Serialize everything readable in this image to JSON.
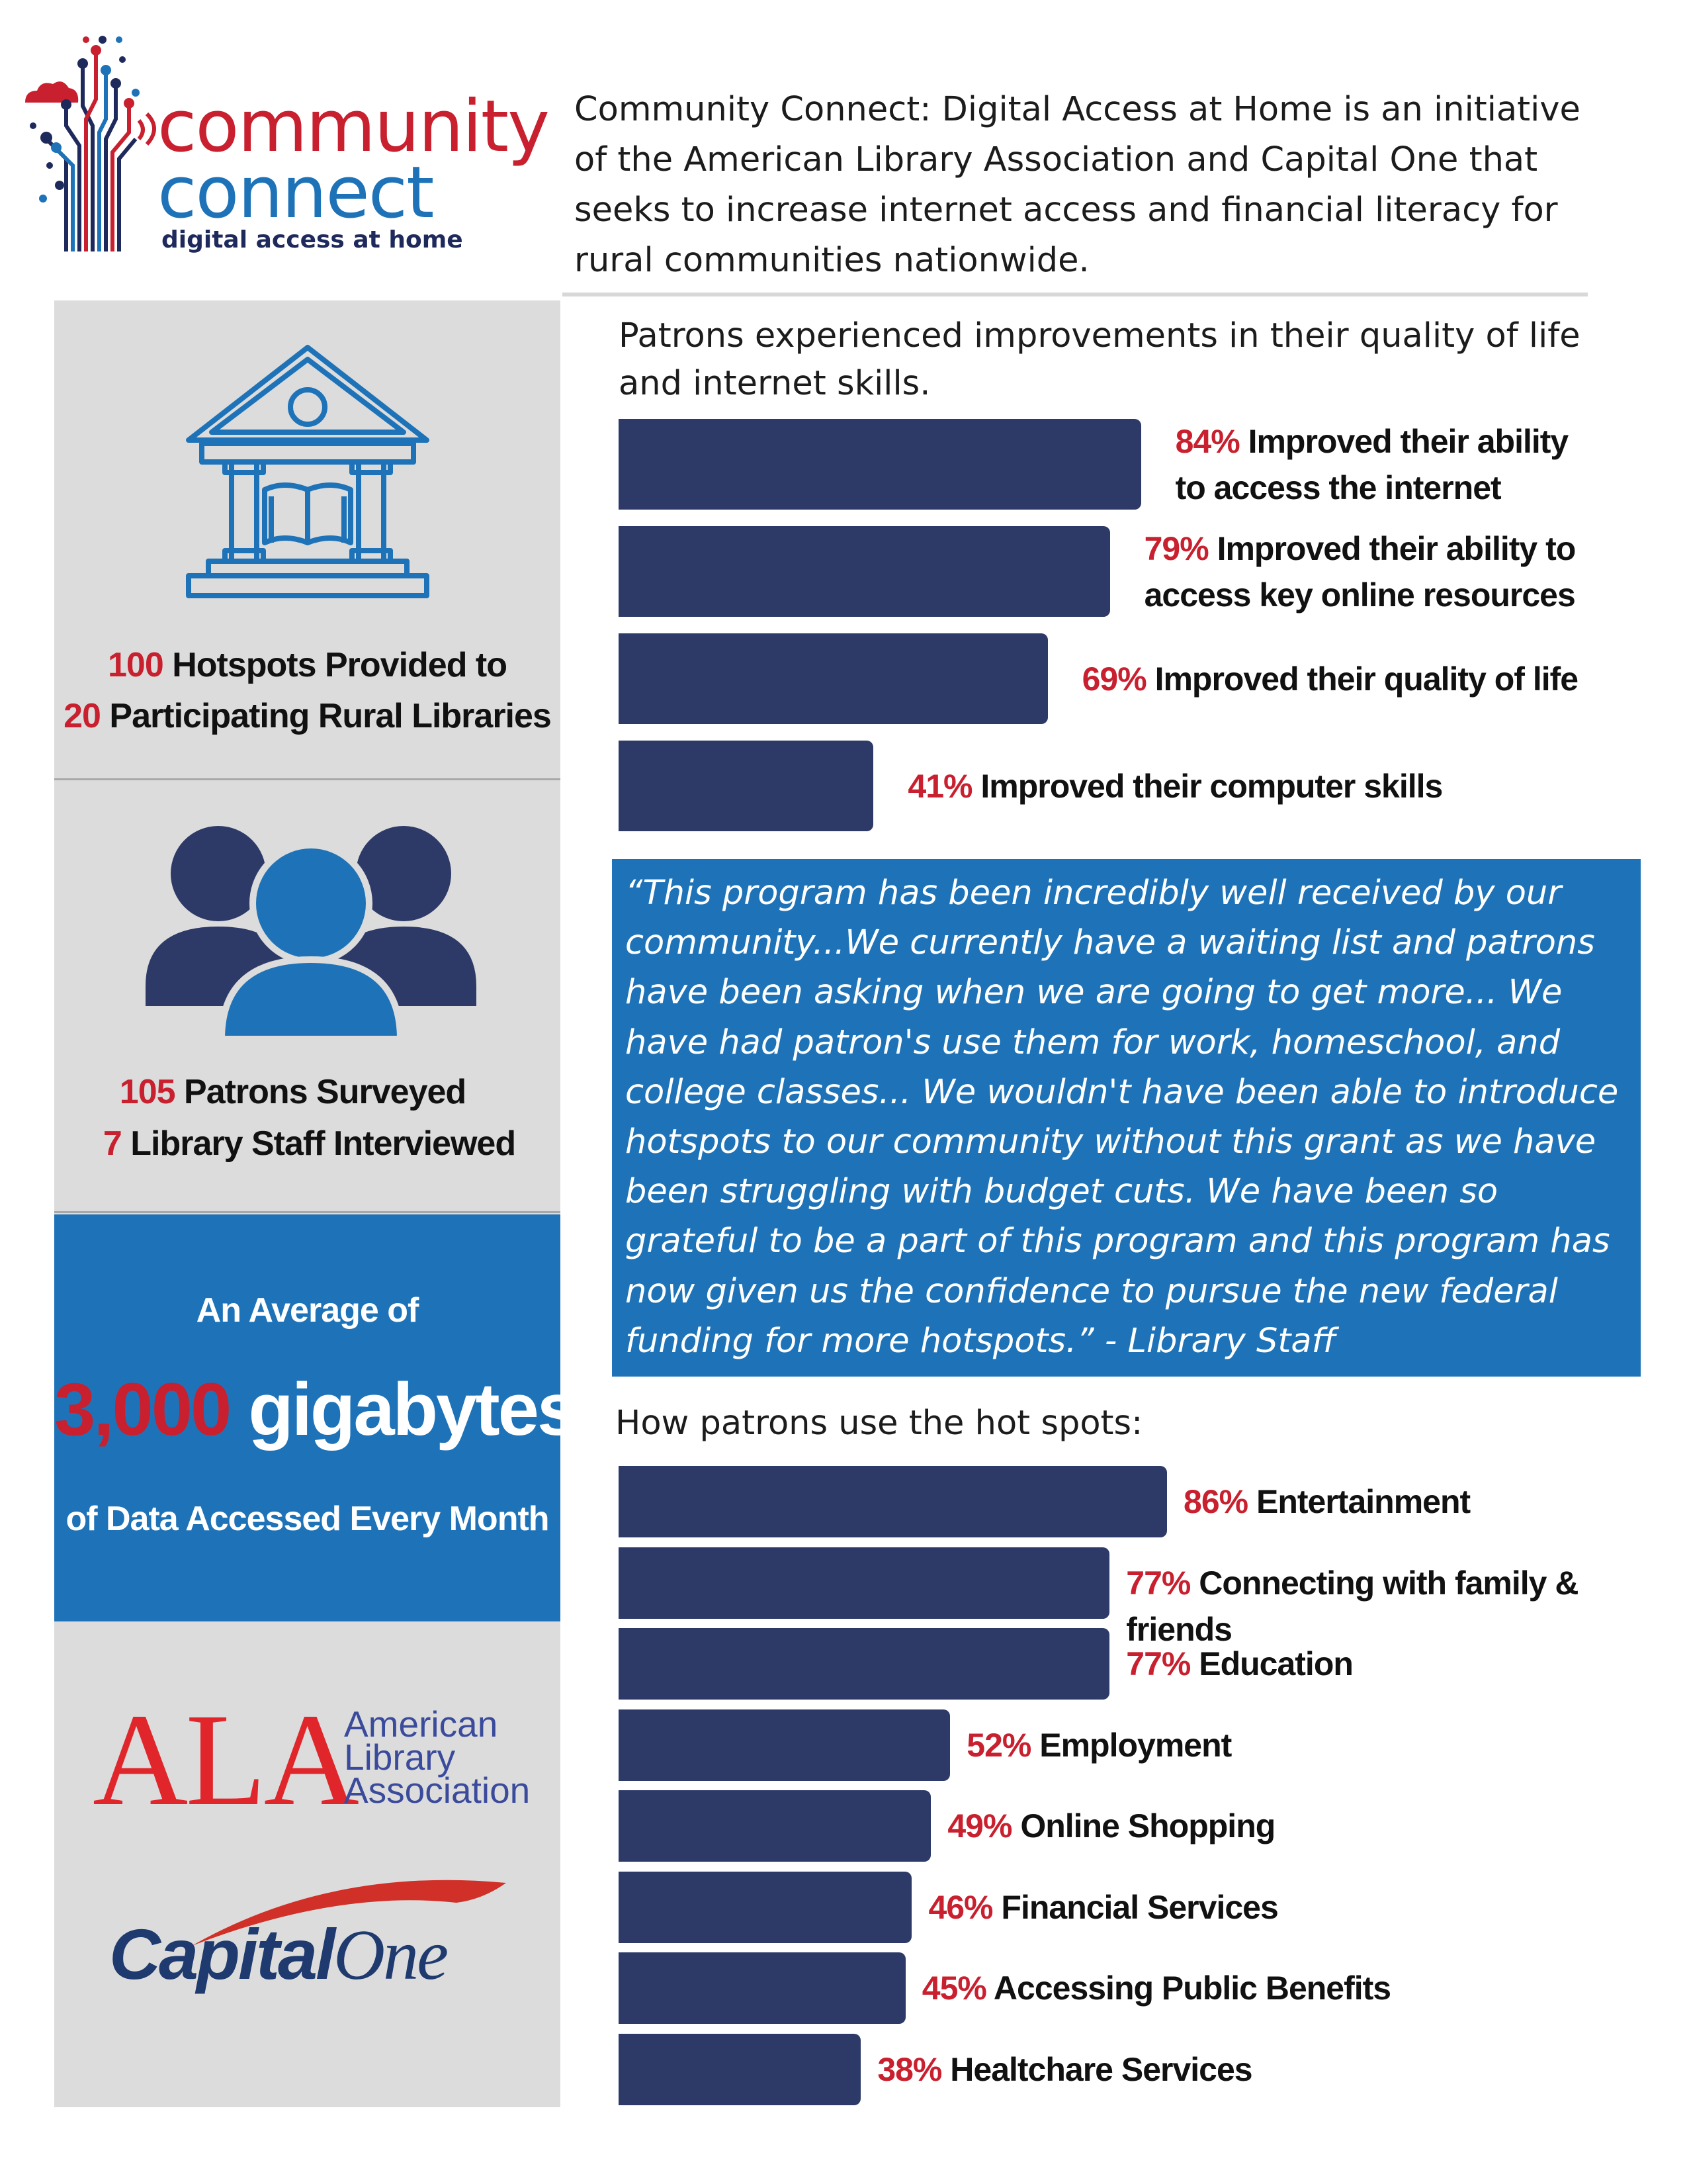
{
  "header": {
    "logo": {
      "line1": "community",
      "line2": "connect",
      "tagline": "digital access at home"
    },
    "intro": "Community Connect: Digital Access at Home is an initiative of the American Library Association and Capital One that seeks to increase internet access and financial literacy for rural communities nationwide."
  },
  "left": {
    "hotspots": {
      "count1": "100",
      "text1": " Hotspots Provided to",
      "count2": "20",
      "text2": " Participating Rural Libraries"
    },
    "patrons": {
      "count1": "105",
      "text1": " Patrons Surveyed",
      "count2": "7",
      "text2": " Library Staff Interviewed"
    },
    "data": {
      "avg": "An Average of",
      "amount": "3,000",
      "unit": " gigabytes",
      "month": "of Data Accessed Every Month"
    },
    "ala": {
      "letters": "ALA",
      "words": [
        "American",
        "Library",
        "Association"
      ]
    },
    "capital_one": {
      "part1": "Capital",
      "part2": "One"
    }
  },
  "colors": {
    "bar": "#2d3a67",
    "accent_red": "#c8202e",
    "accent_blue": "#1e73b8",
    "panel_gray": "#dcdcdc"
  },
  "quote": "“This program has been incredibly well received by our community...We currently have a waiting list and patrons have been asking when we are going to get more... We have had patron's use them for work, homeschool, and college classes... We wouldn't have been able to introduce hotspots to our community without this grant as we have been struggling with budget cuts. We have been so grateful to be a part of this program and this program has now given us the confidence to pursue the new federal funding for more hotspots.” - Library Staff",
  "chart_data": [
    {
      "type": "bar",
      "orientation": "horizontal",
      "title": "Patrons experienced improvements in their quality of life and internet skills.",
      "unit": "%",
      "categories": [
        [
          "Improved their ability",
          "to access the internet"
        ],
        [
          "Improved their ability to",
          "access key online resources"
        ],
        [
          "Improved their quality of life"
        ],
        [
          "Improved their computer skills"
        ]
      ],
      "labels": [
        "84%",
        "79%",
        "69%",
        "41%"
      ],
      "values": [
        84,
        79,
        69,
        41
      ]
    },
    {
      "type": "bar",
      "orientation": "horizontal",
      "title": "How  patrons use the hot spots:",
      "unit": "%",
      "categories": [
        [
          "Entertainment"
        ],
        [
          "Connecting with family & friends"
        ],
        [
          "Education"
        ],
        [
          "Employment"
        ],
        [
          "Online Shopping"
        ],
        [
          "Financial Services"
        ],
        [
          "Accessing Public Benefits"
        ],
        [
          "Healtchare Services"
        ]
      ],
      "labels": [
        "86%",
        "77%",
        "77%",
        "52%",
        "49%",
        "46%",
        "45%",
        "38%"
      ],
      "values": [
        86,
        77,
        77,
        52,
        49,
        46,
        45,
        38
      ]
    }
  ]
}
